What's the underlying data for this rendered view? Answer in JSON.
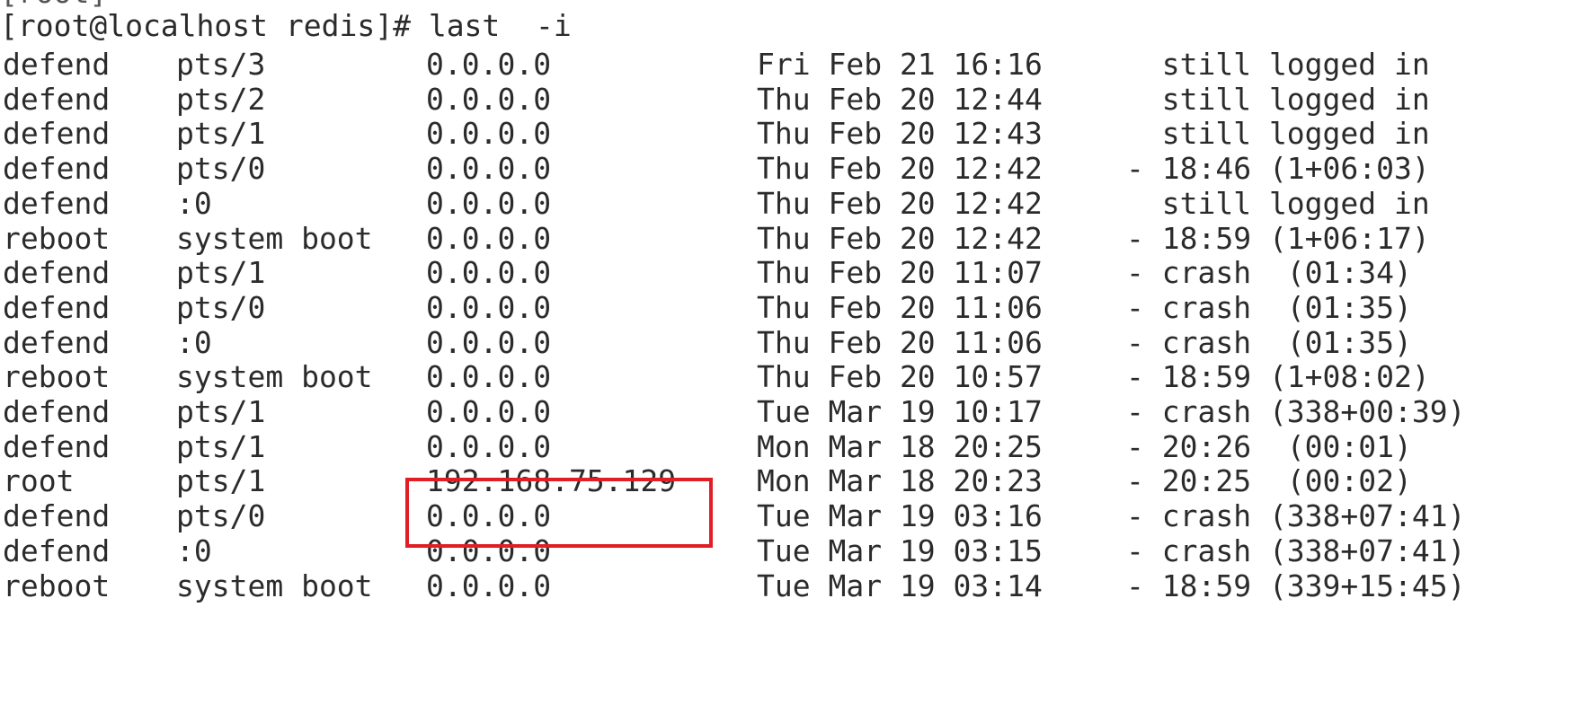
{
  "terminal": {
    "partial_top_text": "[root]",
    "prompt": "[root@localhost redis]# last  -i",
    "rows": [
      {
        "user": "defend",
        "tty": "pts/3",
        "ip": "0.0.0.0",
        "date": "Fri Feb 21 16:16",
        "status": "  still logged in"
      },
      {
        "user": "defend",
        "tty": "pts/2",
        "ip": "0.0.0.0",
        "date": "Thu Feb 20 12:44",
        "status": "  still logged in"
      },
      {
        "user": "defend",
        "tty": "pts/1",
        "ip": "0.0.0.0",
        "date": "Thu Feb 20 12:43",
        "status": "  still logged in"
      },
      {
        "user": "defend",
        "tty": "pts/0",
        "ip": "0.0.0.0",
        "date": "Thu Feb 20 12:42",
        "status": "- 18:46 (1+06:03)"
      },
      {
        "user": "defend",
        "tty": ":0",
        "ip": "0.0.0.0",
        "date": "Thu Feb 20 12:42",
        "status": "  still logged in"
      },
      {
        "user": "reboot",
        "tty": "system boot",
        "ip": "0.0.0.0",
        "date": "Thu Feb 20 12:42",
        "status": "- 18:59 (1+06:17)"
      },
      {
        "user": "defend",
        "tty": "pts/1",
        "ip": "0.0.0.0",
        "date": "Thu Feb 20 11:07",
        "status": "- crash  (01:34)"
      },
      {
        "user": "defend",
        "tty": "pts/0",
        "ip": "0.0.0.0",
        "date": "Thu Feb 20 11:06",
        "status": "- crash  (01:35)"
      },
      {
        "user": "defend",
        "tty": ":0",
        "ip": "0.0.0.0",
        "date": "Thu Feb 20 11:06",
        "status": "- crash  (01:35)"
      },
      {
        "user": "reboot",
        "tty": "system boot",
        "ip": "0.0.0.0",
        "date": "Thu Feb 20 10:57",
        "status": "- 18:59 (1+08:02)"
      },
      {
        "user": "defend",
        "tty": "pts/1",
        "ip": "0.0.0.0",
        "date": "Tue Mar 19 10:17",
        "status": "- crash (338+00:39)"
      },
      {
        "user": "defend",
        "tty": "pts/1",
        "ip": "0.0.0.0",
        "date": "Mon Mar 18 20:25",
        "status": "- 20:26  (00:01)"
      },
      {
        "user": "root",
        "tty": "pts/1",
        "ip": "192.168.75.129",
        "date": "Mon Mar 18 20:23",
        "status": "- 20:25  (00:02)"
      },
      {
        "user": "defend",
        "tty": "pts/0",
        "ip": "0.0.0.0",
        "date": "Tue Mar 19 03:16",
        "status": "- crash (338+07:41)"
      },
      {
        "user": "defend",
        "tty": ":0",
        "ip": "0.0.0.0",
        "date": "Tue Mar 19 03:15",
        "status": "- crash (338+07:41)"
      },
      {
        "user": "reboot",
        "tty": "system boot",
        "ip": "0.0.0.0",
        "date": "Tue Mar 19 03:14",
        "status": "- 18:59 (339+15:45)"
      }
    ]
  },
  "highlight": {
    "color": "#e11d25"
  }
}
